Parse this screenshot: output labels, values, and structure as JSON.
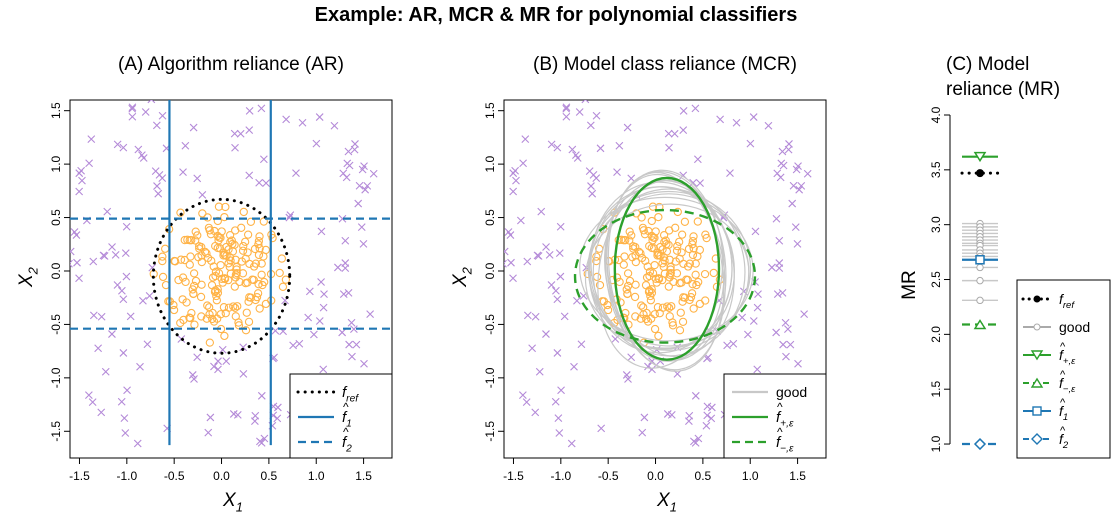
{
  "title": "Example: AR, MCR & MR for polynomial classifiers",
  "colors": {
    "blue": "#1f77b4",
    "green": "#2ca02c",
    "orange": "#ffb347",
    "purple": "#b48ad8",
    "grey": "#c8c8c8",
    "black": "#000000"
  },
  "chart_data": [
    {
      "id": "A",
      "type": "scatter",
      "title": "(A) Algorithm reliance (AR)",
      "xlabel": "X",
      "xlabel_sub": "1",
      "ylabel": "X",
      "ylabel_sub": "2",
      "xlim": [
        -1.6,
        1.8
      ],
      "ylim": [
        -1.75,
        1.6
      ],
      "xticks": [
        "-1.5",
        "-1.0",
        "-0.5",
        "0.0",
        "0.5",
        "1.0",
        "1.5"
      ],
      "yticks": [
        "-1.5",
        "-1.0",
        "-0.5",
        "0.0",
        "0.5",
        "1.0",
        "1.5"
      ],
      "points": {
        "inner_class": "circles, approx. radius <= 0.75 around origin",
        "outer_class": "crosses, scattered out to about 1.6"
      },
      "lines": {
        "f_ref_circle": {
          "center": [
            0.0,
            -0.05
          ],
          "radius": 0.72
        },
        "f1_vertical_x": [
          -0.55,
          0.52
        ],
        "f2_horizontal_y": [
          0.49,
          -0.54
        ]
      },
      "legend": {
        "position": "bottom-right",
        "entries": [
          {
            "label": "f",
            "sub": "ref",
            "hat": "",
            "style": "dotted",
            "color": "black"
          },
          {
            "label": "f",
            "sub": "1",
            "hat": "^",
            "style": "solid",
            "color": "blue"
          },
          {
            "label": "f",
            "sub": "2",
            "hat": "^",
            "style": "dashed",
            "color": "blue"
          }
        ]
      }
    },
    {
      "id": "B",
      "type": "scatter",
      "title": "(B) Model class reliance (MCR)",
      "xlabel": "X",
      "xlabel_sub": "1",
      "ylabel": "X",
      "ylabel_sub": "2",
      "xlim": [
        -1.6,
        1.8
      ],
      "ylim": [
        -1.75,
        1.6
      ],
      "xticks": [
        "-1.5",
        "-1.0",
        "-0.5",
        "0.0",
        "0.5",
        "1.0",
        "1.5"
      ],
      "yticks": [
        "-1.5",
        "-1.0",
        "-0.5",
        "0.0",
        "0.5",
        "1.0",
        "1.5"
      ],
      "curves": {
        "f_plus_ellipse": {
          "center": [
            0.12,
            0.02
          ],
          "rx": 0.55,
          "ry": 0.85
        },
        "f_minus_ellipse": {
          "center": [
            0.1,
            -0.05
          ],
          "rx": 0.95,
          "ry": 0.62
        },
        "good_count": 14
      },
      "legend": {
        "position": "bottom-right",
        "entries": [
          {
            "label": "good",
            "sub": "",
            "hat": "",
            "style": "solid",
            "color": "grey"
          },
          {
            "label": "f",
            "sub": "+,ε",
            "hat": "^",
            "style": "solid",
            "color": "green"
          },
          {
            "label": "f",
            "sub": "−,ε",
            "hat": "^",
            "style": "dashed",
            "color": "green"
          }
        ]
      }
    },
    {
      "id": "C",
      "type": "scatter",
      "title_lines": [
        "(C) Model",
        "reliance (MR)"
      ],
      "ylabel": "MR",
      "ylim": [
        0.9,
        4.0
      ],
      "yticks": [
        "1.0",
        "1.5",
        "2.0",
        "2.5",
        "3.0",
        "3.5",
        "4.0"
      ],
      "values": {
        "f_ref": 3.47,
        "good": [
          3.01,
          2.98,
          2.95,
          2.92,
          2.89,
          2.86,
          2.83,
          2.81,
          2.77,
          2.74,
          2.71,
          2.61,
          2.49,
          2.31
        ],
        "f_plus_eps": 3.62,
        "f_minus_eps": 2.09,
        "f1": 2.68,
        "f2": 1.0
      },
      "legend": {
        "position": "bottom-right",
        "entries": [
          {
            "label": "f",
            "sub": "ref",
            "hat": "",
            "style": "dotted",
            "color": "black",
            "marker": "dot"
          },
          {
            "label": "good",
            "sub": "",
            "hat": "",
            "style": "solid",
            "color": "grey",
            "marker": "circle"
          },
          {
            "label": "f",
            "sub": "+,ε",
            "hat": "^",
            "style": "solid",
            "color": "green",
            "marker": "tri-down"
          },
          {
            "label": "f",
            "sub": "−,ε",
            "hat": "^",
            "style": "dashed",
            "color": "green",
            "marker": "tri-up"
          },
          {
            "label": "f",
            "sub": "1",
            "hat": "^",
            "style": "solid",
            "color": "blue",
            "marker": "square"
          },
          {
            "label": "f",
            "sub": "2",
            "hat": "^",
            "style": "dashed",
            "color": "blue",
            "marker": "diamond"
          }
        ]
      }
    }
  ]
}
